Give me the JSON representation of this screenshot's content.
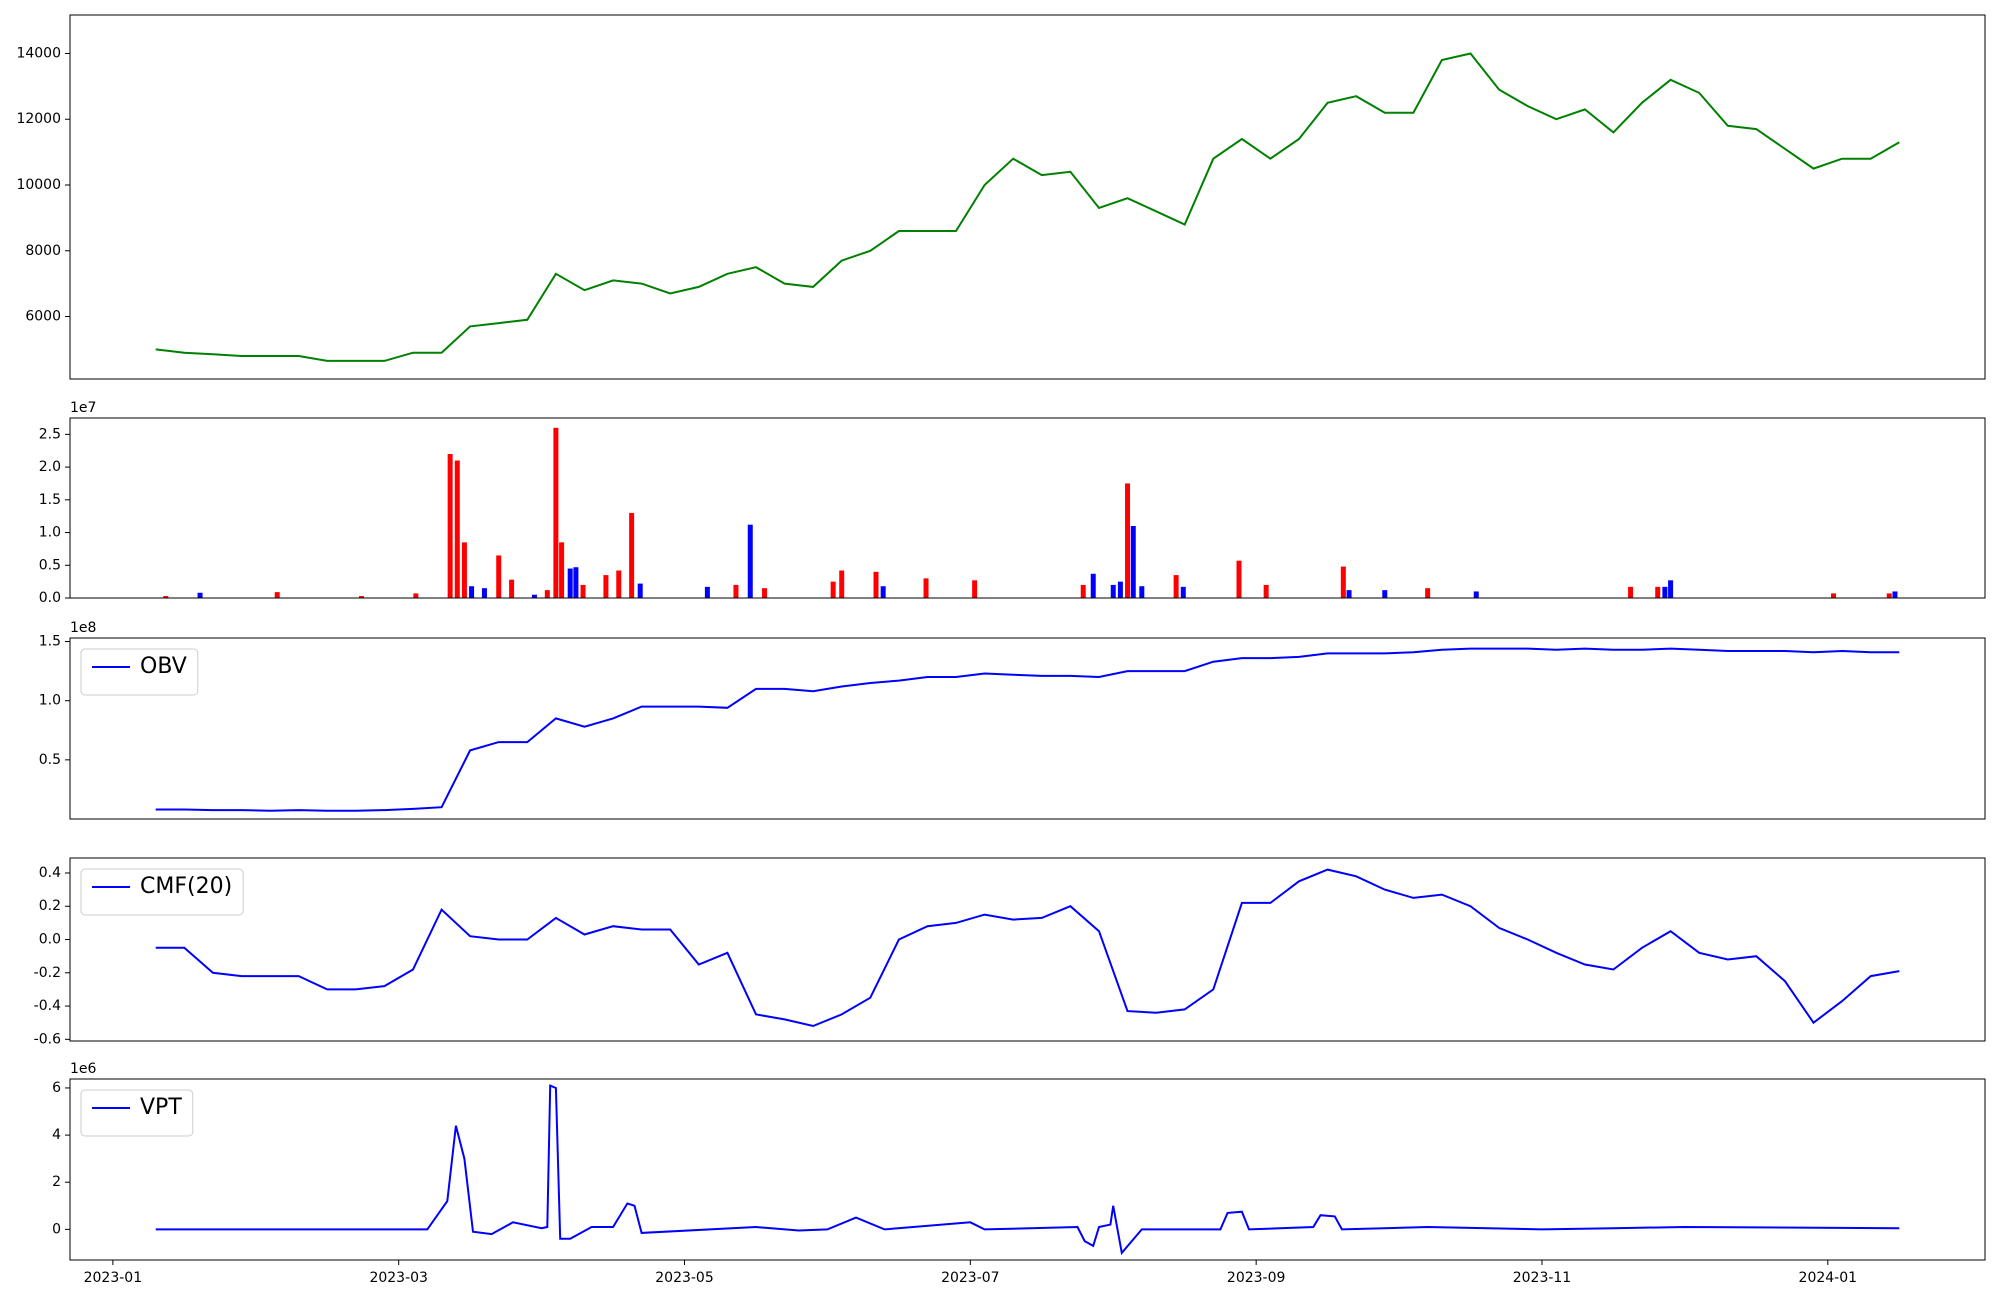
{
  "chart_data": [
    {
      "type": "line",
      "color": "#008000",
      "x": [
        0.3,
        0.5,
        0.7,
        0.9,
        1.1,
        1.3,
        1.5,
        1.7,
        1.9,
        2.1,
        2.3,
        2.5,
        2.7,
        2.9,
        3.1,
        3.3,
        3.5,
        3.7,
        3.9,
        4.1,
        4.3,
        4.5,
        4.7,
        4.9,
        5.1,
        5.3,
        5.5,
        5.7,
        5.9,
        6.1,
        6.3,
        6.5,
        6.7,
        6.9,
        7.1,
        7.3,
        7.5,
        7.7,
        7.9,
        8.1,
        8.3,
        8.5,
        8.7,
        8.9,
        9.1,
        9.3,
        9.5,
        9.7,
        9.9,
        10.1,
        10.3,
        10.5,
        10.7,
        10.9,
        11.1,
        11.3,
        11.5,
        11.7,
        11.9,
        12.1,
        12.3,
        12.5
      ],
      "values": [
        5000,
        4900,
        4850,
        4800,
        4800,
        4800,
        4650,
        4650,
        4650,
        4900,
        4900,
        5700,
        5800,
        5900,
        7300,
        6800,
        7100,
        7000,
        6700,
        6900,
        7300,
        7500,
        7000,
        6900,
        7700,
        8000,
        8600,
        8600,
        8600,
        10000,
        10800,
        10300,
        10400,
        9300,
        9600,
        9200,
        8800,
        10800,
        11400,
        10800,
        11400,
        12500,
        12700,
        12200,
        12200,
        13800,
        14000,
        12900,
        12400,
        12000,
        12300,
        11600,
        12500,
        13200,
        12800,
        11800,
        11700,
        11100,
        10500,
        10800,
        10800,
        11300
      ],
      "xlim": [
        -0.3,
        13.1
      ],
      "ylim": [
        4100,
        15170
      ],
      "yticks": [
        6000,
        8000,
        10000,
        12000,
        14000
      ]
    },
    {
      "type": "bar",
      "y_offset_label": "1e7",
      "x": [
        0.37,
        0.61,
        1.15,
        1.74,
        2.12,
        2.36,
        2.41,
        2.46,
        2.51,
        2.6,
        2.7,
        2.79,
        2.95,
        3.04,
        3.1,
        3.14,
        3.2,
        3.24,
        3.29,
        3.45,
        3.54,
        3.63,
        3.69,
        4.16,
        4.36,
        4.46,
        4.56,
        5.04,
        5.1,
        5.34,
        5.39,
        5.69,
        6.03,
        6.79,
        6.86,
        7.0,
        7.05,
        7.1,
        7.14,
        7.2,
        7.44,
        7.49,
        7.88,
        8.07,
        8.61,
        8.65,
        8.9,
        9.2,
        9.54,
        10.62,
        10.81,
        10.86,
        10.9,
        12.04,
        12.43,
        12.47
      ],
      "values": [
        300000,
        800000,
        900000,
        300000,
        700000,
        22000000,
        21000000,
        8500000,
        1800000,
        1500000,
        6500000,
        2800000,
        500000,
        1200000,
        26000000,
        8500000,
        4500000,
        4700000,
        2000000,
        3500000,
        4200000,
        13000000,
        2200000,
        1700000,
        2000000,
        11200000,
        1500000,
        2500000,
        4200000,
        4000000,
        1800000,
        3000000,
        2700000,
        2000000,
        3700000,
        2000000,
        2500000,
        17500000,
        11000000,
        1800000,
        3500000,
        1700000,
        5700000,
        2000000,
        4800000,
        1200000,
        1200000,
        1500000,
        1000000,
        1700000,
        1700000,
        1700000,
        2700000,
        700000,
        700000,
        1000000
      ],
      "colors": [
        "#ff0000",
        "#0000ff",
        "#ff0000",
        "#ff0000",
        "#ff0000",
        "#ff0000",
        "#ff0000",
        "#ff0000",
        "#0000ff",
        "#0000ff",
        "#ff0000",
        "#ff0000",
        "#0000ff",
        "#ff0000",
        "#ff0000",
        "#ff0000",
        "#0000ff",
        "#0000ff",
        "#ff0000",
        "#ff0000",
        "#ff0000",
        "#ff0000",
        "#0000ff",
        "#0000ff",
        "#ff0000",
        "#0000ff",
        "#ff0000",
        "#ff0000",
        "#ff0000",
        "#ff0000",
        "#0000ff",
        "#ff0000",
        "#ff0000",
        "#ff0000",
        "#0000ff",
        "#0000ff",
        "#0000ff",
        "#ff0000",
        "#0000ff",
        "#0000ff",
        "#ff0000",
        "#0000ff",
        "#ff0000",
        "#ff0000",
        "#ff0000",
        "#0000ff",
        "#0000ff",
        "#ff0000",
        "#0000ff",
        "#ff0000",
        "#ff0000",
        "#0000ff",
        "#0000ff",
        "#ff0000",
        "#ff0000",
        "#0000ff"
      ],
      "xlim": [
        -0.3,
        13.1
      ],
      "ylim": [
        0,
        27500000
      ],
      "yticks": [
        {
          "value": 0,
          "label": "0.0"
        },
        {
          "value": 5000000,
          "label": "0.5"
        },
        {
          "value": 10000000,
          "label": "1.0"
        },
        {
          "value": 15000000,
          "label": "1.5"
        },
        {
          "value": 20000000,
          "label": "2.0"
        },
        {
          "value": 25000000,
          "label": "2.5"
        }
      ]
    },
    {
      "type": "line",
      "y_offset_label": "1e8",
      "legend": "upper left",
      "x": [
        0.3,
        0.5,
        0.7,
        0.9,
        1.1,
        1.3,
        1.5,
        1.7,
        1.9,
        2.1,
        2.3,
        2.5,
        2.7,
        2.9,
        3.1,
        3.3,
        3.5,
        3.7,
        3.9,
        4.1,
        4.3,
        4.5,
        4.7,
        4.9,
        5.1,
        5.3,
        5.5,
        5.7,
        5.9,
        6.1,
        6.3,
        6.5,
        6.7,
        6.9,
        7.1,
        7.3,
        7.5,
        7.7,
        7.9,
        8.1,
        8.3,
        8.5,
        8.7,
        8.9,
        9.1,
        9.3,
        9.5,
        9.7,
        9.9,
        10.1,
        10.3,
        10.5,
        10.7,
        10.9,
        11.1,
        11.3,
        11.5,
        11.7,
        11.9,
        12.1,
        12.3,
        12.5
      ],
      "series": [
        {
          "name": "OBV",
          "color": "#0000ff",
          "values": [
            8000000,
            8000000,
            7500000,
            7500000,
            7000000,
            7500000,
            7000000,
            7000000,
            7500000,
            8500000,
            10000000,
            58000000,
            65000000,
            65000000,
            85000000,
            78000000,
            85000000,
            95000000,
            95000000,
            95000000,
            94000000,
            110000000,
            110000000,
            108000000,
            112000000,
            115000000,
            117000000,
            120000000,
            120000000,
            123000000,
            122000000,
            121000000,
            121000000,
            120000000,
            125000000,
            125000000,
            125000000,
            133000000,
            136000000,
            136000000,
            137000000,
            140000000,
            140000000,
            140000000,
            141000000,
            143000000,
            144000000,
            144000000,
            144000000,
            143000000,
            144000000,
            143000000,
            143000000,
            144000000,
            143000000,
            142000000,
            142000000,
            142000000,
            141000000,
            142000000,
            141000000,
            141000000
          ]
        }
      ],
      "xlim": [
        -0.3,
        13.1
      ],
      "ylim": [
        0,
        153000000
      ],
      "yticks": [
        {
          "value": 50000000,
          "label": "0.5"
        },
        {
          "value": 100000000,
          "label": "1.0"
        },
        {
          "value": 150000000,
          "label": "1.5"
        }
      ]
    },
    {
      "type": "line",
      "legend": "upper left",
      "x": [
        0.3,
        0.5,
        0.7,
        0.9,
        1.1,
        1.3,
        1.5,
        1.7,
        1.9,
        2.1,
        2.3,
        2.5,
        2.7,
        2.9,
        3.1,
        3.3,
        3.5,
        3.7,
        3.9,
        4.1,
        4.3,
        4.5,
        4.7,
        4.9,
        5.1,
        5.3,
        5.5,
        5.7,
        5.9,
        6.1,
        6.3,
        6.5,
        6.7,
        6.9,
        7.1,
        7.3,
        7.5,
        7.7,
        7.9,
        8.1,
        8.3,
        8.5,
        8.7,
        8.9,
        9.1,
        9.3,
        9.5,
        9.7,
        9.9,
        10.1,
        10.3,
        10.5,
        10.7,
        10.9,
        11.1,
        11.3,
        11.5,
        11.7,
        11.9,
        12.1,
        12.3,
        12.5
      ],
      "series": [
        {
          "name": "CMF(20)",
          "color": "#0000ff",
          "values": [
            -0.05,
            -0.05,
            -0.2,
            -0.22,
            -0.22,
            -0.22,
            -0.3,
            -0.3,
            -0.28,
            -0.18,
            0.18,
            0.02,
            0.0,
            0.0,
            0.13,
            0.03,
            0.08,
            0.06,
            0.06,
            -0.15,
            -0.08,
            -0.45,
            -0.48,
            -0.52,
            -0.45,
            -0.35,
            0.0,
            0.08,
            0.1,
            0.15,
            0.12,
            0.13,
            0.2,
            0.05,
            -0.43,
            -0.44,
            -0.42,
            -0.3,
            0.22,
            0.22,
            0.35,
            0.42,
            0.38,
            0.3,
            0.25,
            0.27,
            0.2,
            0.07,
            0.0,
            -0.08,
            -0.15,
            -0.18,
            -0.05,
            0.05,
            -0.08,
            -0.12,
            -0.1,
            -0.25,
            -0.5,
            -0.37,
            -0.22,
            -0.19
          ]
        }
      ],
      "xlim": [
        -0.3,
        13.1
      ],
      "ylim": [
        -0.61,
        0.49
      ],
      "yticks": [
        -0.6,
        -0.4,
        -0.2,
        {
          "value": 0,
          "label": "0.0"
        },
        0.2,
        0.4
      ]
    },
    {
      "type": "line",
      "y_offset_label": "1e6",
      "legend": "upper left",
      "x": [
        0.3,
        2.2,
        2.34,
        2.4,
        2.46,
        2.52,
        2.65,
        2.8,
        3.0,
        3.04,
        3.06,
        3.1,
        3.13,
        3.2,
        3.35,
        3.5,
        3.6,
        3.65,
        3.7,
        4.5,
        4.8,
        5.0,
        5.2,
        5.4,
        6.0,
        6.1,
        6.75,
        6.8,
        6.86,
        6.9,
        6.98,
        7.0,
        7.06,
        7.2,
        7.75,
        7.8,
        7.9,
        7.95,
        8.4,
        8.45,
        8.55,
        8.6,
        9.2,
        10.0,
        10.5,
        11.0,
        12.5
      ],
      "series": [
        {
          "name": "VPT",
          "color": "#0000ff",
          "values": [
            0,
            0,
            1200000,
            4400000,
            3000000,
            -100000,
            -200000,
            300000,
            50000,
            100000,
            6100000,
            6000000,
            -400000,
            -400000,
            100000,
            100000,
            1100000,
            1000000,
            -150000,
            100000,
            -50000,
            0,
            500000,
            0,
            300000,
            0,
            100000,
            -500000,
            -700000,
            100000,
            200000,
            1000000,
            -1000000,
            0,
            0,
            700000,
            750000,
            0,
            100000,
            600000,
            550000,
            0,
            100000,
            0,
            50000,
            100000,
            50000
          ]
        }
      ],
      "xlim": [
        -0.3,
        13.1
      ],
      "ylim": [
        -1300000,
        6380000
      ],
      "yticks": [
        0,
        {
          "value": 2000000,
          "label": "2"
        },
        {
          "value": 4000000,
          "label": "4"
        },
        {
          "value": 6000000,
          "label": "6"
        }
      ],
      "xticks": [
        {
          "value": 0,
          "label": "2023-01"
        },
        {
          "value": 2,
          "label": "2023-03"
        },
        {
          "value": 4,
          "label": "2023-05"
        },
        {
          "value": 6,
          "label": "2023-07"
        },
        {
          "value": 8,
          "label": "2023-09"
        },
        {
          "value": 10,
          "label": "2023-11"
        },
        {
          "value": 12,
          "label": "2024-01"
        }
      ]
    }
  ]
}
